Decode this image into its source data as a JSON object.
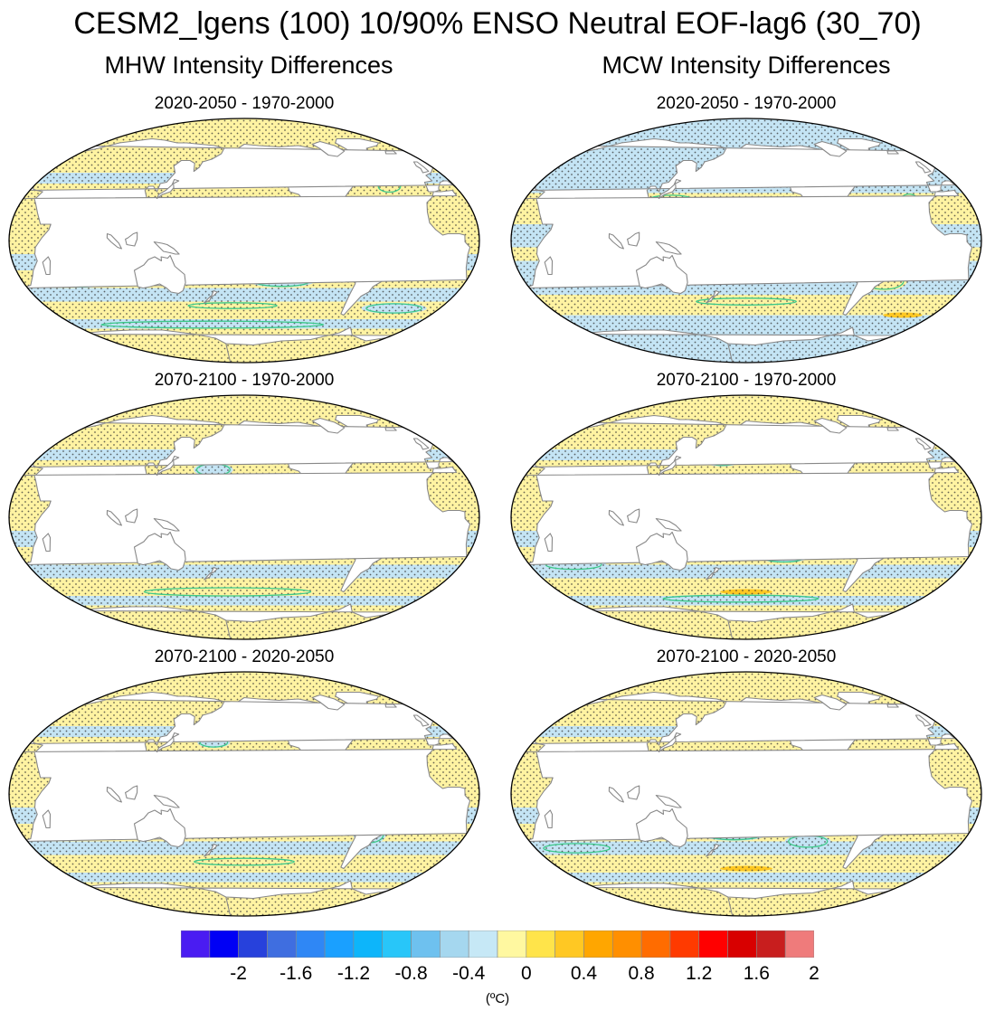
{
  "figure": {
    "title": "CESM2_lgens (100) 10/90% ENSO Neutral EOF-lag6 (30_70)",
    "columns": [
      {
        "title": "MHW Intensity Differences"
      },
      {
        "title": "MCW Intensity Differences"
      }
    ],
    "panels": [
      {
        "title": "2020-2050 - 1970-2000",
        "column": "MHW"
      },
      {
        "title": "2020-2050 - 1970-2000",
        "column": "MCW"
      },
      {
        "title": "2070-2100 - 1970-2000",
        "column": "MHW"
      },
      {
        "title": "2070-2100 - 1970-2000",
        "column": "MCW"
      },
      {
        "title": "2070-2100 - 2020-2050",
        "column": "MHW"
      },
      {
        "title": "2070-2100 - 2020-2050",
        "column": "MCW"
      }
    ]
  },
  "colorbar": {
    "colors": [
      "#4a1cf2",
      "#0000f5",
      "#2741dc",
      "#3f6ee0",
      "#2f87f5",
      "#1aa0ff",
      "#0db5fa",
      "#28c6f9",
      "#6ec1ef",
      "#a5d7ef",
      "#c6e8f6",
      "#fff8a0",
      "#ffe44a",
      "#ffc823",
      "#ffa600",
      "#ff8f00",
      "#ff6c00",
      "#ff3a00",
      "#ff0000",
      "#d80000",
      "#c81e1e",
      "#ef7b7b"
    ],
    "labels": [
      "-2",
      "-1.6",
      "-1.2",
      "-0.8",
      "-0.4",
      "0",
      "0.4",
      "0.8",
      "1.2",
      "1.6",
      "2"
    ],
    "units": "(ºC)"
  },
  "map_colors": {
    "ocean_positive": "#fff3a2",
    "ocean_negative": "#c4e4f4",
    "land": "#ffffff",
    "coast": "#888888",
    "contour": "#3cc98a",
    "stipple": "#333333"
  }
}
